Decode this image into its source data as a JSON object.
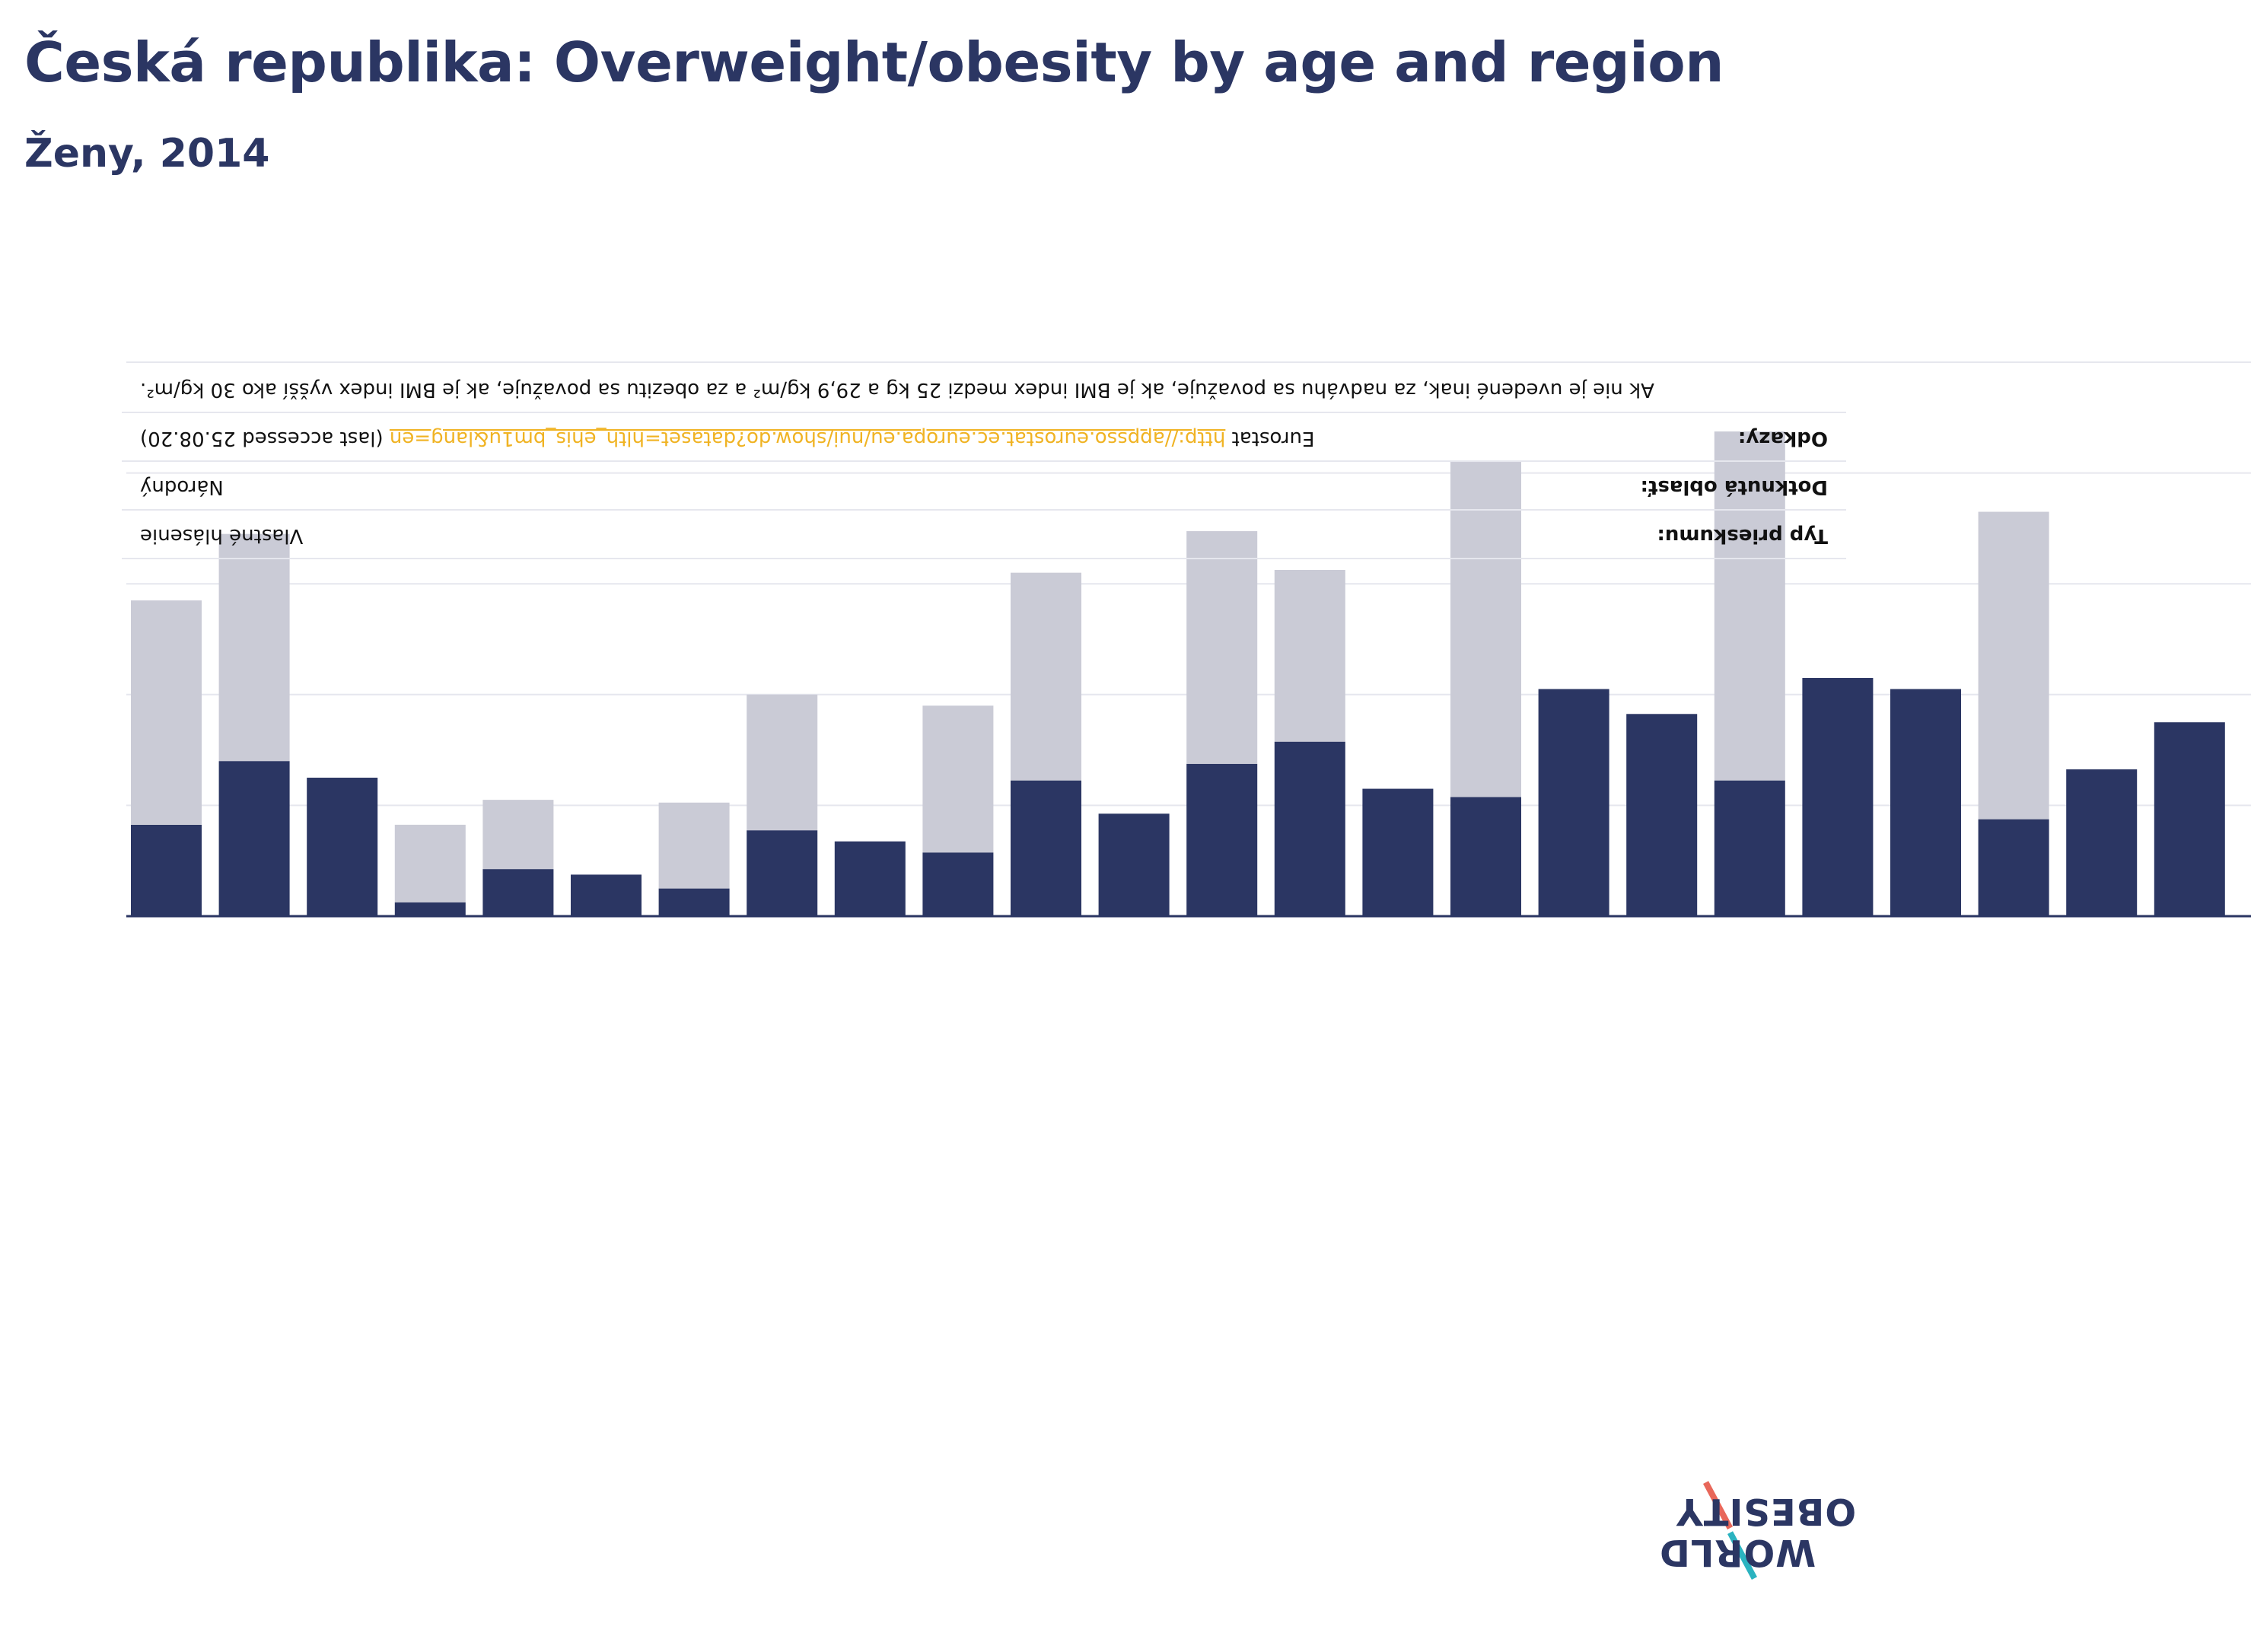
{
  "header": {
    "title": "Česká republika: Overweight/obesity by age and region",
    "subtitle": "Ženy, 2014"
  },
  "notes": {
    "survey_type_label": "Typ prieskumu:",
    "survey_type_value": "Vlastné hlásenie",
    "area_label": "Dotknutá oblasť:",
    "area_value": "Národný",
    "references_label": "Odkazy:",
    "references_prefix": "Eurostat",
    "references_link": "http://appsso.eurostat.ec.europa.eu/nui/show.do?dataset=hlth_ehis_bm1u&lang=en",
    "references_suffix": "(last accessed 25.08.20)",
    "definition": "Ak nie je uvedené inak, za nadváhu sa považuje, ak je BMI index medzi 25 kg a 29,9 kg/m² a za obezitu sa považuje, ak je BMI index vyšší ako 30 kg/m²."
  },
  "logo": {
    "line1": "OBESITY",
    "line2": "WORLD"
  },
  "colors": {
    "title": "#2b3663",
    "obesity": "#2b3663",
    "overweight": "#cacbd6",
    "grid": "#e6e7ee",
    "axis": "#2b3663",
    "link": "#f0b323"
  },
  "chart_data": {
    "type": "bar",
    "stacked": true,
    "ylim": [
      0,
      100
    ],
    "grid": true,
    "series": [
      {
        "key": "obesity",
        "values": [
          16.5,
          28,
          25,
          2.5,
          8.5,
          7.5,
          5,
          15.5,
          13.5,
          11.5,
          24.5,
          18.5,
          27.5,
          31.5,
          23,
          21.5,
          41,
          36.5,
          24.5,
          43,
          41,
          17.5,
          26.5,
          35
        ]
      },
      {
        "key": "overweight",
        "values": [
          40.5,
          41,
          0,
          14,
          12.5,
          0,
          15.5,
          24.5,
          0,
          26.5,
          37.5,
          0,
          42,
          31,
          0,
          60.5,
          0,
          0,
          63,
          0,
          0,
          55.5,
          0,
          0
        ]
      }
    ]
  }
}
